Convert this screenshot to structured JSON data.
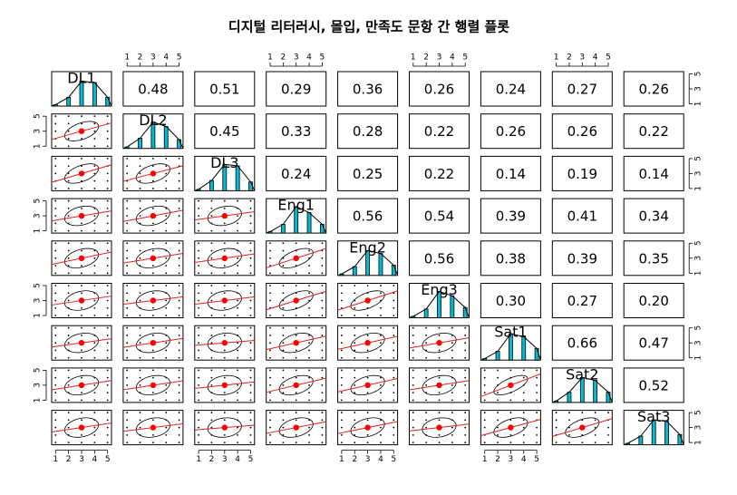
{
  "chart_data": {
    "type": "pairs",
    "title": "디지털 리터러시, 몰입, 만족도 문항 간 행렬 플롯",
    "variables": [
      "DL1",
      "DL2",
      "DL3",
      "Eng1",
      "Eng2",
      "Eng3",
      "Sat1",
      "Sat2",
      "Sat3"
    ],
    "xlim": [
      0.7,
      5.3
    ],
    "ylim": [
      0.7,
      5.3
    ],
    "xticks": [
      1,
      2,
      3,
      4,
      5
    ],
    "yticks": [
      1,
      3,
      5
    ],
    "means": [
      3,
      3,
      3,
      3,
      3,
      3,
      3,
      3,
      3
    ],
    "histograms": [
      [
        0.05,
        0.3,
        0.85,
        0.8,
        0.3
      ],
      [
        0.05,
        0.35,
        0.9,
        0.75,
        0.3
      ],
      [
        0.05,
        0.35,
        0.9,
        0.85,
        0.3
      ],
      [
        0.05,
        0.3,
        0.9,
        0.7,
        0.3
      ],
      [
        0.05,
        0.3,
        0.85,
        0.75,
        0.35
      ],
      [
        0.05,
        0.3,
        0.9,
        0.75,
        0.35
      ],
      [
        0.05,
        0.3,
        0.9,
        0.8,
        0.4
      ],
      [
        0.05,
        0.35,
        0.85,
        0.75,
        0.35
      ],
      [
        0.05,
        0.3,
        0.85,
        0.8,
        0.35
      ]
    ],
    "correlations": [
      {
        "values": [
          0.48,
          0.51,
          0.29,
          0.36,
          0.26,
          0.24,
          0.27,
          0.26
        ],
        "value_labels": [
          "0.48",
          "0.51",
          "0.29",
          "0.36",
          "0.26",
          "0.24",
          "0.27",
          "0.26"
        ]
      },
      {
        "values": [
          0.45,
          0.33,
          0.28,
          0.22,
          0.26,
          0.26,
          0.22
        ],
        "value_labels": [
          "0.45",
          "0.33",
          "0.28",
          "0.22",
          "0.26",
          "0.26",
          "0.22"
        ]
      },
      {
        "values": [
          0.24,
          0.25,
          0.22,
          0.14,
          0.19,
          0.14
        ],
        "value_labels": [
          "0.24",
          "0.25",
          "0.22",
          "0.14",
          "0.19",
          "0.14"
        ]
      },
      {
        "values": [
          0.56,
          0.54,
          0.39,
          0.41,
          0.34
        ],
        "value_labels": [
          "0.56",
          "0.54",
          "0.39",
          "0.41",
          "0.34"
        ]
      },
      {
        "values": [
          0.56,
          0.38,
          0.39,
          0.35
        ],
        "value_labels": [
          "0.56",
          "0.38",
          "0.39",
          "0.35"
        ]
      },
      {
        "values": [
          0.3,
          0.27,
          0.2
        ],
        "value_labels": [
          "0.30",
          "0.27",
          "0.20"
        ]
      },
      {
        "values": [
          0.66,
          0.47
        ],
        "value_labels": [
          "0.66",
          "0.47"
        ]
      },
      {
        "values": [
          0.52
        ],
        "value_labels": [
          "0.52"
        ]
      },
      {
        "values": [],
        "value_labels": []
      }
    ],
    "hist_color": "#00bcd4",
    "fit_color": "#e02020",
    "mean_color": "#ff0000"
  }
}
